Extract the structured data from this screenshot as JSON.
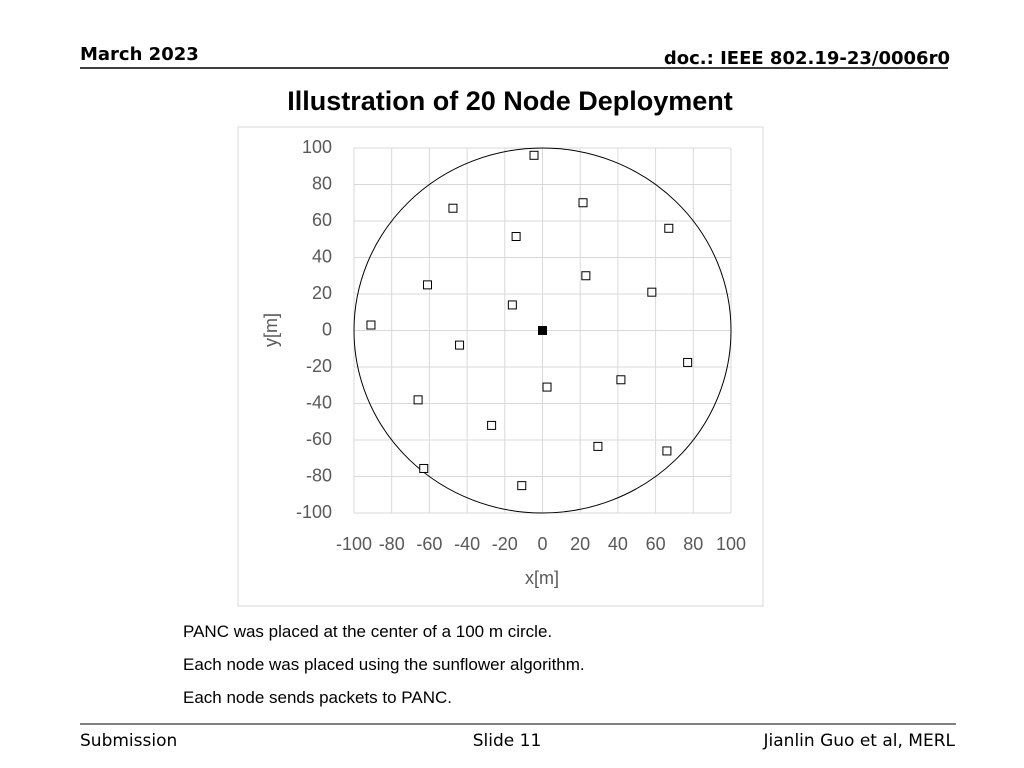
{
  "header": {
    "date": "March 2023",
    "doc": "doc.: IEEE 802.19-23/0006r0"
  },
  "chart_data": {
    "type": "scatter",
    "title": "Illustration of 20 Node Deployment",
    "xlabel": "x[m]",
    "ylabel": "y[m]",
    "xlim": [
      -100,
      100
    ],
    "ylim": [
      -100,
      100
    ],
    "xticks": [
      -100,
      -80,
      -60,
      -40,
      -20,
      0,
      20,
      40,
      60,
      80,
      100
    ],
    "yticks": [
      -100,
      -80,
      -60,
      -40,
      -20,
      0,
      20,
      40,
      60,
      80,
      100
    ],
    "grid": true,
    "circle_radius": 100,
    "series": [
      {
        "color": "#000000",
        "fill": "none",
        "x": [
          -4.5,
          21.5,
          -47.5,
          67,
          -14,
          23,
          -61,
          58,
          -16,
          -91,
          -44,
          77,
          41.6,
          2.4,
          -66,
          -27,
          29.4,
          66,
          -63,
          -11
        ],
        "values": [
          96,
          70,
          67,
          56,
          51.5,
          30,
          25,
          21,
          14,
          3,
          -8,
          -17.5,
          -27,
          -31,
          -38,
          -52,
          -63.5,
          -66,
          -75.6,
          -85
        ]
      },
      {
        "color": "#000000",
        "fill": "#000000",
        "x": [
          0
        ],
        "values": [
          0
        ]
      }
    ]
  },
  "notes": [
    "PANC was placed at the center of a 100 m circle.",
    "Each node was placed using the sunflower algorithm.",
    "Each node sends packets to PANC."
  ],
  "footer": {
    "left": "Submission",
    "center": "Slide 11",
    "right": "Jianlin Guo et al, MERL"
  }
}
